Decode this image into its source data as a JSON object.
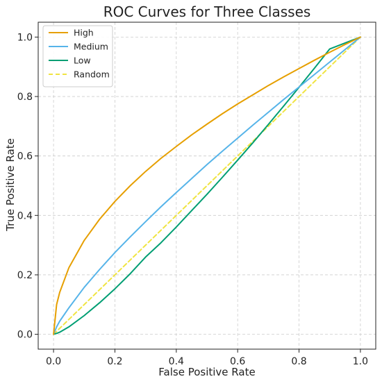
{
  "chart_data": {
    "type": "line",
    "title": "ROC Curves for Three Classes",
    "xlabel": "False Positive Rate",
    "ylabel": "True Positive Rate",
    "xlim": [
      -0.05,
      1.05
    ],
    "ylim": [
      -0.05,
      1.05
    ],
    "xticks": [
      0.0,
      0.2,
      0.4,
      0.6,
      0.8,
      1.0
    ],
    "yticks": [
      0.0,
      0.2,
      0.4,
      0.6,
      0.8,
      1.0
    ],
    "xtick_labels": [
      "0.0",
      "0.2",
      "0.4",
      "0.6",
      "0.8",
      "1.0"
    ],
    "ytick_labels": [
      "0.0",
      "0.2",
      "0.4",
      "0.6",
      "0.8",
      "1.0"
    ],
    "grid": true,
    "legend_position": "top-left",
    "x": [
      0.0,
      0.01,
      0.02,
      0.05,
      0.1,
      0.15,
      0.2,
      0.25,
      0.3,
      0.35,
      0.4,
      0.45,
      0.5,
      0.55,
      0.6,
      0.65,
      0.7,
      0.75,
      0.8,
      0.85,
      0.9,
      0.95,
      1.0
    ],
    "series": [
      {
        "name": "High",
        "color": "#E69F00",
        "style": "solid",
        "values": [
          0.0,
          0.1,
          0.141,
          0.224,
          0.316,
          0.387,
          0.447,
          0.5,
          0.548,
          0.592,
          0.632,
          0.671,
          0.707,
          0.742,
          0.775,
          0.806,
          0.837,
          0.866,
          0.894,
          0.922,
          0.949,
          0.975,
          1.0
        ]
      },
      {
        "name": "Medium",
        "color": "#56B4E9",
        "style": "solid",
        "values": [
          0.0,
          0.025,
          0.044,
          0.089,
          0.158,
          0.218,
          0.275,
          0.328,
          0.379,
          0.429,
          0.477,
          0.524,
          0.571,
          0.616,
          0.66,
          0.704,
          0.747,
          0.79,
          0.832,
          0.874,
          0.916,
          0.958,
          1.0
        ]
      },
      {
        "name": "Low",
        "color": "#009E73",
        "style": "solid",
        "values": [
          0.0,
          0.003,
          0.007,
          0.025,
          0.063,
          0.106,
          0.153,
          0.204,
          0.26,
          0.308,
          0.361,
          0.416,
          0.471,
          0.528,
          0.586,
          0.645,
          0.706,
          0.768,
          0.831,
          0.895,
          0.96,
          0.98,
          1.0
        ]
      },
      {
        "name": "Random",
        "color": "#F0E442",
        "style": "dashed",
        "values": [
          0.0,
          0.01,
          0.02,
          0.05,
          0.1,
          0.15,
          0.2,
          0.25,
          0.3,
          0.35,
          0.4,
          0.45,
          0.5,
          0.55,
          0.6,
          0.65,
          0.7,
          0.75,
          0.8,
          0.85,
          0.9,
          0.95,
          1.0
        ]
      }
    ]
  }
}
